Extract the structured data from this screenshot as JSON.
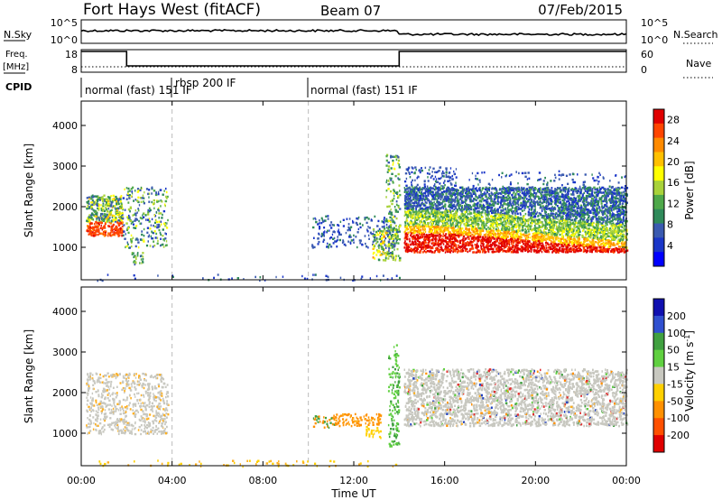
{
  "header": {
    "title": "Fort Hays West (fitACF)",
    "beam": "Beam 07",
    "date": "07/Feb/2015"
  },
  "noise_panel": {
    "left_label": "N.Sky",
    "right_label": "N.Search",
    "left_ticks": [
      "10^5",
      "10^0"
    ],
    "right_ticks": [
      "10^5",
      "10^0"
    ]
  },
  "freq_panel": {
    "left_label": "Freq.",
    "left_unit": "[MHz]",
    "right_label": "Nave",
    "left_ticks": [
      "18",
      "8"
    ],
    "right_ticks": [
      "60",
      "0"
    ]
  },
  "cpid": {
    "label": "CPID",
    "segments": [
      {
        "text": "normal (fast) 151 IF",
        "start_hour": 0
      },
      {
        "text": "rbsp 200 IF",
        "start_hour": 4
      },
      {
        "text": "normal (fast) 151 IF",
        "start_hour": 10
      }
    ]
  },
  "chart_data": [
    {
      "type": "heatmap",
      "name": "power",
      "ylabel": "Slant Range [km]",
      "ylim": [
        200,
        4600
      ],
      "yticks": [
        "1000",
        "2000",
        "3000",
        "4000"
      ],
      "xlim": [
        0,
        24
      ],
      "xticks": [
        "00:00",
        "04:00",
        "08:00",
        "12:00",
        "16:00",
        "20:00",
        "00:00"
      ],
      "xlabel": "",
      "colorbar": {
        "label": "Power [dB]",
        "range": [
          0,
          30
        ],
        "ticks": [
          "4",
          "8",
          "12",
          "16",
          "20",
          "24",
          "28"
        ],
        "colors": [
          "#0000ff",
          "#1a36c8",
          "#3a5ab0",
          "#2f8a5a",
          "#4ea84a",
          "#a8d23a",
          "#ffff00",
          "#ffc000",
          "#ff8a00",
          "#ff4500",
          "#e00000"
        ]
      },
      "grid": false
    },
    {
      "type": "heatmap",
      "name": "velocity",
      "ylabel": "Slant Range [km]",
      "ylim": [
        200,
        4600
      ],
      "yticks": [
        "1000",
        "2000",
        "3000",
        "4000"
      ],
      "xlim": [
        0,
        24
      ],
      "xticks": [
        "00:00",
        "04:00",
        "08:00",
        "12:00",
        "16:00",
        "20:00",
        "00:00"
      ],
      "xlabel": "Time UT",
      "colorbar": {
        "label": "Velocity [m s^-1]",
        "ticks": [
          "200",
          "100",
          "50",
          "15",
          "-15",
          "-50",
          "-100",
          "-200"
        ],
        "colors": [
          "#1010b0",
          "#3050d0",
          "#40a040",
          "#60d040",
          "#c8c8c0",
          "#ffd000",
          "#ff9000",
          "#ff5000",
          "#e00000"
        ]
      },
      "grid": false
    }
  ],
  "features": {
    "dashed_vertical_lines_hours": [
      4.0,
      10.0
    ]
  }
}
